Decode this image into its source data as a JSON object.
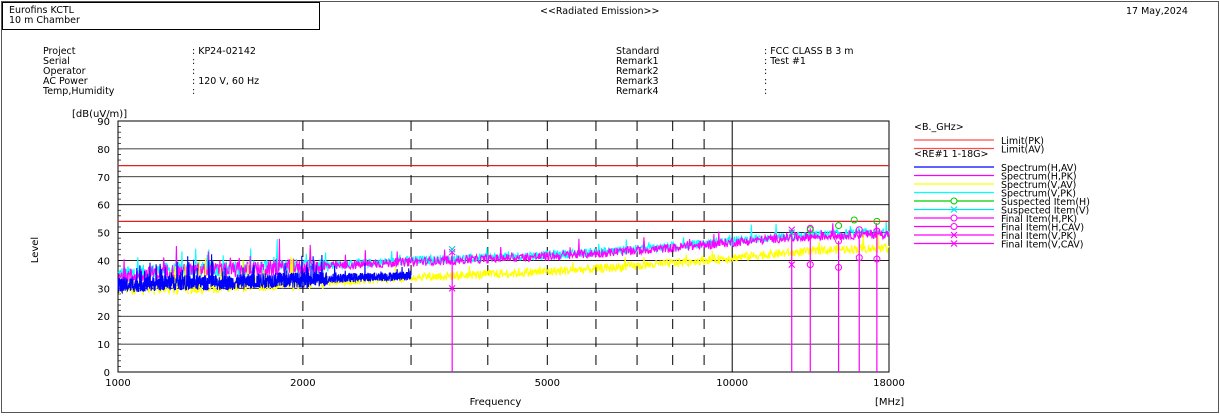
{
  "header": {
    "company": "Eurofins KCTL",
    "chamber": "10 m Chamber",
    "title": "<<Radiated Emission>>",
    "date": "17 May,2024"
  },
  "info_left": [
    {
      "label": "Project",
      "value": ": KP24-02142"
    },
    {
      "label": "Serial",
      "value": ":"
    },
    {
      "label": "Operator",
      "value": ":"
    },
    {
      "label": "AC Power",
      "value": ": 120 V, 60 Hz"
    },
    {
      "label": "Temp,Humidity",
      "value": ":"
    }
  ],
  "info_right": [
    {
      "label": "Standard",
      "value": ": FCC CLASS B 3 m"
    },
    {
      "label": "Remark1",
      "value": ": Test #1"
    },
    {
      "label": "Remark2",
      "value": ":"
    },
    {
      "label": "Remark3",
      "value": ":"
    },
    {
      "label": "Remark4",
      "value": ":"
    }
  ],
  "chart_data": {
    "type": "line",
    "xlabel": "Frequency",
    "xunit": "[MHz]",
    "ylabel": "Level",
    "yunit": "[dB(uV/m)]",
    "xscale": "log",
    "xlim": [
      1000,
      18000
    ],
    "ylim": [
      0,
      90
    ],
    "yticks": [
      0,
      10,
      20,
      30,
      40,
      50,
      60,
      70,
      80,
      90
    ],
    "xtick_labels": [
      {
        "value": 1000,
        "label": "1000"
      },
      {
        "value": 2000,
        "label": "2000"
      },
      {
        "value": 5000,
        "label": "5000"
      },
      {
        "value": 10000,
        "label": "10000"
      },
      {
        "value": 18000,
        "label": "18000"
      }
    ],
    "xgrid_dashed": [
      3000,
      4000,
      6000,
      7000,
      8000,
      9000
    ],
    "xgrid_solid": [
      10000
    ],
    "legend_placement": "right",
    "legend": [
      {
        "group": "<B._GHz>"
      },
      {
        "name": "Limit(PK)",
        "color": "#ff4d4d",
        "marker": "none"
      },
      {
        "name": "Limit(AV)",
        "color": "#ff4d4d",
        "marker": "none"
      },
      {
        "group": "<RE#1 1-18G>"
      },
      {
        "name": "Spectrum(H,AV)",
        "color": "#0000ff",
        "marker": "none"
      },
      {
        "name": "Spectrum(H,PK)",
        "color": "#ff00ff",
        "marker": "none"
      },
      {
        "name": "Spectrum(V,AV)",
        "color": "#ffff00",
        "marker": "none"
      },
      {
        "name": "Spectrum(V,PK)",
        "color": "#00ffff",
        "marker": "none"
      },
      {
        "name": "Suspected Item(H)",
        "color": "#00cc00",
        "marker": "circle"
      },
      {
        "name": "Suspected Item(V)",
        "color": "#00e5e5",
        "marker": "x"
      },
      {
        "name": "Final Item(H,PK)",
        "color": "#ff00ff",
        "marker": "circle"
      },
      {
        "name": "Final Item(H,CAV)",
        "color": "#ff00ff",
        "marker": "circle"
      },
      {
        "name": "Final Item(V,PK)",
        "color": "#ff00ff",
        "marker": "x"
      },
      {
        "name": "Final Item(V,CAV)",
        "color": "#ff00ff",
        "marker": "x"
      }
    ],
    "limits": [
      {
        "name": "Limit(PK)",
        "value": 74,
        "color": "#e02020"
      },
      {
        "name": "Limit(AV)",
        "value": 54,
        "color": "#e02020"
      }
    ],
    "spectrum": [
      {
        "name": "Spectrum(V,PK)",
        "color": "#00ffff",
        "x": [
          1000,
          1200,
          1500,
          2000,
          2500,
          3000,
          4000,
          5000,
          6000,
          8000,
          10000,
          12000,
          15000,
          18000
        ],
        "y": [
          35,
          36.5,
          37,
          38,
          39,
          40,
          41,
          42,
          43,
          45,
          47,
          48.5,
          49.5,
          50
        ]
      },
      {
        "name": "Spectrum(H,PK)",
        "color": "#ff00ff",
        "x": [
          1000,
          1200,
          1500,
          2000,
          2500,
          3000,
          4000,
          5000,
          6000,
          8000,
          10000,
          12000,
          15000,
          18000
        ],
        "y": [
          34,
          36,
          36.5,
          37.5,
          38.5,
          39.5,
          40.5,
          41.5,
          42.5,
          44.5,
          46.5,
          48,
          49,
          49.5
        ]
      },
      {
        "name": "Spectrum(V,AV)",
        "color": "#ffff00",
        "x": [
          1000,
          1200,
          1500,
          2000,
          2500,
          3000,
          4000,
          5000,
          6000,
          8000,
          10000,
          12000,
          15000,
          18000
        ],
        "y": [
          30,
          30.5,
          31,
          32,
          33,
          34,
          35,
          36,
          37,
          39,
          41,
          42.5,
          44,
          44.5
        ]
      },
      {
        "name": "Spectrum(H,AV)",
        "color": "#0000ff",
        "x": [
          1000,
          1200,
          1500,
          1800,
          2000,
          2500,
          3000
        ],
        "y": [
          31,
          32,
          32,
          33,
          33,
          34,
          34.5
        ]
      }
    ],
    "final_items": [
      {
        "f": 3500,
        "pk": 43,
        "cav": 30,
        "pol": "V"
      },
      {
        "f": 12500,
        "pk": 51,
        "cav": 38.5,
        "pol": "V"
      },
      {
        "f": 13400,
        "pk": 51.5,
        "cav": 38.5,
        "pol": "H"
      },
      {
        "f": 14900,
        "pk": 47,
        "cav": 37.5,
        "pol": "H"
      },
      {
        "f": 16100,
        "pk": 51,
        "cav": 41,
        "pol": "H"
      },
      {
        "f": 17200,
        "pk": 50.5,
        "cav": 40.5,
        "pol": "H"
      }
    ],
    "suspected_items": [
      {
        "f": 3500,
        "y": 44,
        "pol": "V"
      },
      {
        "f": 12500,
        "y": 50,
        "pol": "V"
      },
      {
        "f": 13400,
        "y": 51,
        "pol": "H"
      },
      {
        "f": 14900,
        "y": 52.5,
        "pol": "H"
      },
      {
        "f": 15800,
        "y": 54.5,
        "pol": "H"
      },
      {
        "f": 17200,
        "y": 54,
        "pol": "H"
      }
    ]
  }
}
